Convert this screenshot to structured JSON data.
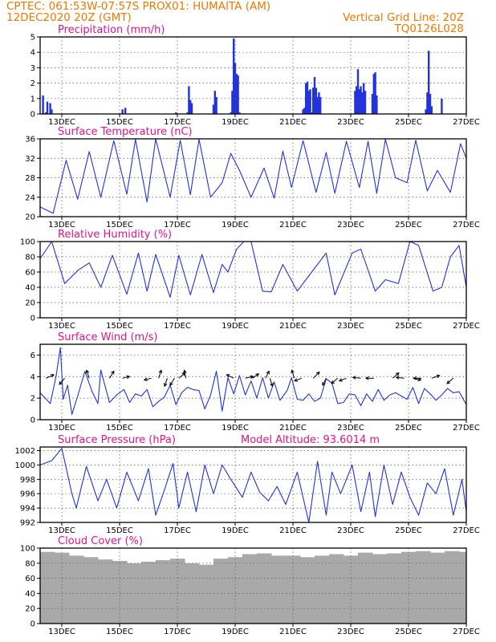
{
  "header": {
    "line1": "CPTEC:   061:53W-07:57S   PROX01: HUMAITA (AM)",
    "line2_left": "12DEC2020 20Z (GMT)",
    "line2_right": "Vertical Grid Line: 20Z",
    "line3_right": "TQ0126L028"
  },
  "colors": {
    "header": "#f07800",
    "title": "#e0148c",
    "line": "#2233dd",
    "cloud": "#a9a9a9",
    "grid": "#555555",
    "arrows": "#000000"
  },
  "chart_data": [
    {
      "type": "bar",
      "title": "Precipitation (mm/h)",
      "ylim": [
        0,
        5
      ],
      "yticks": [
        0,
        1,
        2,
        3,
        4,
        5
      ],
      "xticks": [
        "13DEC",
        "15DEC",
        "17DEC",
        "19DEC",
        "21DEC",
        "23DEC",
        "25DEC",
        "27DEC"
      ],
      "grid": true,
      "x_days": [
        0.1,
        0.2,
        0.25,
        0.35,
        0.4,
        2.85,
        2.95,
        4.7,
        5.1,
        5.15,
        5.2,
        5.25,
        6.0,
        6.05,
        6.1,
        6.6,
        6.65,
        6.7,
        6.75,
        6.8,
        6.85,
        6.9,
        9.1,
        9.15,
        9.2,
        9.25,
        9.3,
        9.35,
        9.4,
        9.45,
        9.5,
        9.55,
        9.6,
        9.65,
        9.7,
        10.9,
        10.95,
        11.0,
        11.05,
        11.1,
        11.15,
        11.2,
        11.25,
        11.5,
        11.55,
        11.6,
        11.65,
        13.35,
        13.4,
        13.45,
        13.5,
        13.55,
        13.9
      ],
      "values": [
        1.2,
        0.1,
        0.8,
        0.7,
        0.3,
        0.3,
        0.4,
        0.1,
        0.1,
        1.8,
        0.9,
        0.7,
        0.6,
        1.5,
        1.1,
        0.1,
        1.5,
        4.9,
        3.3,
        2.6,
        2.5,
        0.1,
        0.3,
        0.4,
        2.0,
        2.1,
        1.5,
        1.6,
        0.1,
        1.7,
        2.4,
        1.7,
        1.1,
        1.4,
        1.1,
        1.5,
        1.8,
        2.9,
        1.6,
        1.8,
        1.4,
        2.0,
        1.5,
        1.3,
        2.6,
        2.7,
        1.2,
        0.3,
        1.4,
        4.1,
        1.3,
        0.5,
        1.0
      ]
    },
    {
      "type": "line",
      "title": "Surface Temperature (nC)",
      "ylim": [
        20,
        36
      ],
      "yticks": [
        20,
        24,
        28,
        32,
        36
      ],
      "xticks": [
        "13DEC",
        "15DEC",
        "17DEC",
        "19DEC",
        "21DEC",
        "23DEC",
        "25DEC",
        "27DEC"
      ],
      "grid": true,
      "x_days": [
        0,
        0.45,
        0.9,
        1.3,
        1.7,
        2.1,
        2.55,
        3.0,
        3.3,
        3.7,
        4.0,
        4.5,
        4.85,
        5.2,
        5.5,
        5.9,
        6.3,
        6.6,
        6.9,
        7.3,
        7.75,
        8.1,
        8.4,
        8.7,
        9.1,
        9.55,
        9.9,
        10.2,
        10.6,
        11.05,
        11.35,
        11.65,
        11.95,
        12.3,
        12.7,
        13.0,
        13.4,
        13.75,
        14.2,
        14.55,
        14.75
      ],
      "values": [
        22,
        20.7,
        31.6,
        23.6,
        33.4,
        24,
        35.6,
        24.6,
        35.9,
        23,
        36,
        24,
        35.7,
        24.5,
        35.9,
        24,
        27,
        33,
        29.5,
        24,
        30,
        23.8,
        33.5,
        26,
        35.6,
        25,
        33.2,
        24.8,
        35.5,
        26,
        35.5,
        24.8,
        35.9,
        28,
        27,
        35.7,
        25.3,
        29.5,
        25,
        35,
        32
      ]
    },
    {
      "type": "line",
      "title": "Relative Humidity (%)",
      "ylim": [
        0,
        100
      ],
      "yticks": [
        0,
        20,
        40,
        60,
        80,
        100
      ],
      "xticks": [
        "13DEC",
        "15DEC",
        "17DEC",
        "19DEC",
        "21DEC",
        "23DEC",
        "25DEC",
        "27DEC"
      ],
      "grid": true,
      "x_days": [
        0,
        0.1,
        0.4,
        0.85,
        1.3,
        1.7,
        2.1,
        2.5,
        3.0,
        3.4,
        3.7,
        4.0,
        4.5,
        4.8,
        5.2,
        5.6,
        6.0,
        6.3,
        6.5,
        6.8,
        7.05,
        7.3,
        7.7,
        8.0,
        8.4,
        8.9,
        9.4,
        9.9,
        10.2,
        10.8,
        11.1,
        11.6,
        11.95,
        12.4,
        12.8,
        13.1,
        13.6,
        13.9,
        14.2,
        14.5,
        14.75
      ],
      "values": [
        78,
        83,
        100,
        45,
        62,
        72,
        40,
        82,
        31,
        85,
        35,
        83,
        27,
        82,
        30,
        83,
        33,
        70,
        60,
        90,
        100,
        100,
        35,
        34,
        70,
        35,
        60,
        85,
        30,
        85,
        90,
        35,
        50,
        45,
        100,
        95,
        35,
        40,
        80,
        95,
        40
      ]
    },
    {
      "type": "line",
      "title": "Surface Wind (m/s)",
      "ylim": [
        0,
        7
      ],
      "yticks": [
        0,
        2,
        4,
        6
      ],
      "xticks": [
        "13DEC",
        "15DEC",
        "17DEC",
        "19DEC",
        "21DEC",
        "23DEC",
        "25DEC",
        "27DEC"
      ],
      "grid": true,
      "x_days": [
        0,
        0.35,
        0.55,
        0.7,
        0.8,
        0.95,
        1.1,
        1.3,
        1.55,
        1.8,
        2.0,
        2.1,
        2.4,
        2.65,
        2.9,
        3.1,
        3.3,
        3.5,
        3.7,
        3.9,
        4.1,
        4.3,
        4.5,
        4.7,
        4.9,
        5.1,
        5.3,
        5.5,
        5.7,
        5.9,
        6.1,
        6.3,
        6.5,
        6.7,
        6.9,
        7.1,
        7.3,
        7.5,
        7.7,
        7.9,
        8.1,
        8.3,
        8.55,
        8.7,
        8.9,
        9.1,
        9.3,
        9.5,
        9.7,
        9.9,
        10.1,
        10.3,
        10.5,
        10.7,
        10.9,
        11.1,
        11.3,
        11.5,
        11.7,
        11.9,
        12.1,
        12.3,
        12.5,
        12.7,
        12.9,
        13.1,
        13.3,
        13.5,
        13.7,
        13.9,
        14.1,
        14.3,
        14.5,
        14.75
      ],
      "values": [
        2.5,
        1.5,
        4.0,
        6.7,
        1.9,
        3.2,
        0.5,
        2.2,
        4.5,
        2.6,
        1.5,
        4.6,
        1.6,
        2.3,
        2.8,
        1.6,
        2.4,
        2.2,
        2.8,
        1.2,
        1.7,
        2.1,
        3.2,
        1.4,
        2.5,
        3.0,
        2.8,
        2.7,
        1.0,
        2.3,
        4.5,
        0.8,
        3.9,
        2.4,
        4.1,
        2.3,
        3.6,
        2.0,
        3.9,
        2.0,
        3.5,
        1.8,
        2.7,
        3.9,
        1.9,
        1.8,
        2.4,
        1.7,
        2.0,
        3.8,
        3.4,
        1.5,
        1.6,
        2.4,
        2.3,
        1.3,
        2.4,
        1.7,
        2.8,
        1.8,
        2.3,
        2.5,
        2.2,
        1.9,
        3.0,
        1.5,
        2.9,
        2.4,
        1.8,
        2.3,
        2.9,
        2.5,
        2.6,
        1.4
      ],
      "vectors": [
        {
          "day": 0.2,
          "u": 0.9,
          "v": 0.4
        },
        {
          "day": 0.85,
          "u": -0.6,
          "v": -0.7
        },
        {
          "day": 1.7,
          "u": -0.3,
          "v": 0.9
        },
        {
          "day": 2.4,
          "u": 0.5,
          "v": 0.8
        },
        {
          "day": 2.85,
          "u": 0.8,
          "v": 0.2
        },
        {
          "day": 3.85,
          "u": -0.8,
          "v": -0.2
        },
        {
          "day": 4.1,
          "u": 0.3,
          "v": 0.9
        },
        {
          "day": 4.4,
          "u": -0.3,
          "v": -0.9
        },
        {
          "day": 4.65,
          "u": -0.5,
          "v": -0.8
        },
        {
          "day": 4.8,
          "u": 0.7,
          "v": 0.6
        },
        {
          "day": 5.05,
          "u": -0.2,
          "v": 0.9
        },
        {
          "day": 6.7,
          "u": -0.8,
          "v": 0.4
        },
        {
          "day": 7.1,
          "u": 0.9,
          "v": 0.2
        },
        {
          "day": 7.35,
          "u": 0.7,
          "v": 0.5
        },
        {
          "day": 7.8,
          "u": 0.4,
          "v": 0.8
        },
        {
          "day": 7.95,
          "u": 0.3,
          "v": -0.9
        },
        {
          "day": 8.8,
          "u": -0.3,
          "v": 0.9
        },
        {
          "day": 9.05,
          "u": -0.8,
          "v": -0.3
        },
        {
          "day": 9.45,
          "u": 0.7,
          "v": 0.7
        },
        {
          "day": 9.9,
          "u": -0.4,
          "v": -0.8
        },
        {
          "day": 10.3,
          "u": -0.7,
          "v": -0.6
        },
        {
          "day": 10.6,
          "u": -0.8,
          "v": -0.3
        },
        {
          "day": 11.1,
          "u": -0.9,
          "v": 0.1
        },
        {
          "day": 11.55,
          "u": -0.9,
          "v": 0.0
        },
        {
          "day": 12.2,
          "u": 0.7,
          "v": 0.6
        },
        {
          "day": 12.6,
          "u": -0.9,
          "v": 0.1
        },
        {
          "day": 12.9,
          "u": 0.9,
          "v": -0.2
        },
        {
          "day": 13.2,
          "u": -0.9,
          "v": 0.0
        },
        {
          "day": 13.55,
          "u": 0.9,
          "v": 0.3
        },
        {
          "day": 14.3,
          "u": -0.7,
          "v": -0.6
        }
      ]
    },
    {
      "type": "line",
      "title": "Surface Pressure (hPa)",
      "annotation": "Model Altitude: 93.6014 m",
      "ylim": [
        992,
        1002.5
      ],
      "yticks": [
        992,
        994,
        996,
        998,
        1000,
        1002
      ],
      "xticks": [
        "13DEC",
        "15DEC",
        "17DEC",
        "19DEC",
        "21DEC",
        "23DEC",
        "25DEC",
        "27DEC"
      ],
      "grid": true,
      "x_days": [
        0,
        0.4,
        0.75,
        1.1,
        1.25,
        1.6,
        2.0,
        2.3,
        2.65,
        3.0,
        3.4,
        3.75,
        4.0,
        4.3,
        4.6,
        4.8,
        5.1,
        5.4,
        5.7,
        6.0,
        6.3,
        6.6,
        7.0,
        7.3,
        7.6,
        7.9,
        8.2,
        8.5,
        8.9,
        9.3,
        9.6,
        9.9,
        10.1,
        10.4,
        10.8,
        11.1,
        11.4,
        11.6,
        11.9,
        12.2,
        12.5,
        12.8,
        13.1,
        13.4,
        13.7,
        14.0,
        14.3,
        14.6,
        14.75
      ],
      "values": [
        1000,
        1000.6,
        1002.3,
        996,
        994,
        999.8,
        995,
        998,
        994,
        999,
        995,
        999.5,
        993,
        996.5,
        1000.2,
        994,
        999,
        993.5,
        1000,
        996,
        1000,
        998,
        995.5,
        999,
        996.2,
        995,
        997,
        994.5,
        999,
        992,
        1000.5,
        993,
        999,
        996,
        1000,
        993.5,
        999,
        992.8,
        1000,
        994.5,
        999,
        995.5,
        993,
        997.5,
        996,
        999.5,
        993,
        998,
        993.5
      ]
    },
    {
      "type": "bar",
      "title": "Cloud Cover (%)",
      "ylim": [
        0,
        100
      ],
      "yticks": [
        0,
        20,
        40,
        60,
        80,
        100
      ],
      "xticks": [
        "13DEC",
        "15DEC",
        "17DEC",
        "19DEC",
        "21DEC",
        "23DEC",
        "25DEC",
        "27DEC"
      ],
      "grid": true,
      "x_days": [
        0,
        0.5,
        1,
        1.5,
        2,
        2.5,
        3,
        3.5,
        4,
        4.5,
        5,
        5.5,
        6,
        6.5,
        7,
        7.5,
        8,
        8.5,
        9,
        9.5,
        10,
        10.5,
        11,
        11.5,
        12,
        12.5,
        13,
        13.5,
        14,
        14.5
      ],
      "values": [
        95,
        94,
        90,
        88,
        85,
        83,
        80,
        82,
        84,
        86,
        80,
        78,
        86,
        88,
        92,
        93,
        90,
        90,
        88,
        90,
        92,
        90,
        94,
        92,
        93,
        95,
        96,
        94,
        96,
        95
      ]
    }
  ]
}
